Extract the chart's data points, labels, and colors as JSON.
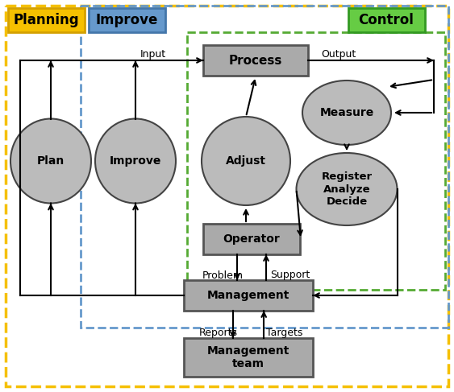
{
  "fig_width": 5.63,
  "fig_height": 4.87,
  "bg_color": "#ffffff",
  "label_planning": "Planning",
  "label_improve_header": "Improve",
  "label_control": "Control",
  "label_input": "Input",
  "label_output": "Output",
  "label_process": "Process",
  "label_measure": "Measure",
  "label_rad": "Register\nAnalyze\nDecide",
  "label_adjust": "Adjust",
  "label_operator": "Operator",
  "label_management": "Management",
  "label_mgmt_team": "Management\nteam",
  "label_plan": "Plan",
  "label_improve": "Improve",
  "label_problem": "Problem",
  "label_support": "Support",
  "label_reports": "Reports",
  "label_targets": "Targets",
  "yellow_color": "#f5c000",
  "yellow_dark": "#d4a000",
  "blue_color": "#6699cc",
  "blue_dark": "#4477aa",
  "green_color": "#55aa33",
  "green_dark": "#339922",
  "green_light": "#66cc44",
  "box_fill": "#aaaaaa",
  "box_edge": "#555555",
  "circle_fill": "#bbbbbb",
  "circle_edge": "#444444"
}
